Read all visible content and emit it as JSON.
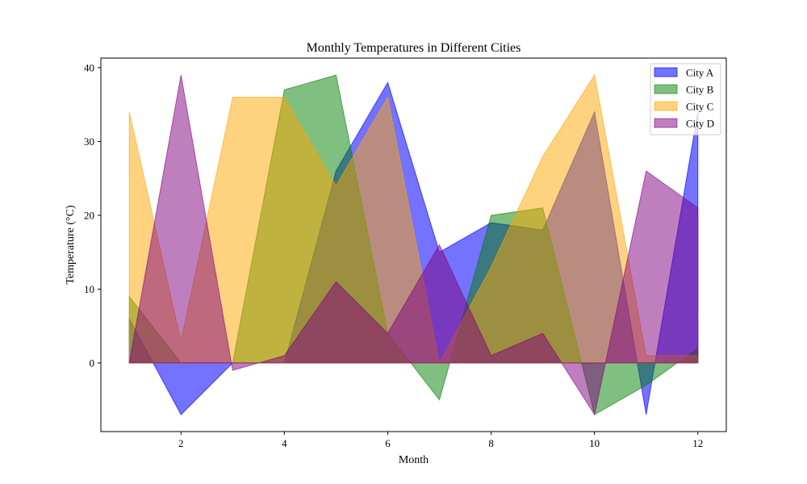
{
  "chart_data": {
    "type": "area",
    "title": "Monthly Temperatures in Different Cities",
    "xlabel": "Month",
    "ylabel": "Temperature (°C)",
    "x": [
      1,
      2,
      3,
      4,
      5,
      6,
      7,
      8,
      9,
      10,
      11,
      12
    ],
    "xlim": [
      0.45,
      12.55
    ],
    "ylim": [
      -9.3,
      41.3
    ],
    "xticks": [
      2,
      4,
      6,
      8,
      10,
      12
    ],
    "yticks": [
      0,
      10,
      20,
      30,
      40
    ],
    "grid": false,
    "legend_position": "top-right",
    "series": [
      {
        "name": "City A",
        "color": "#0000ff",
        "opacity": 0.55,
        "values": [
          6,
          -7,
          0,
          0,
          26,
          38,
          15,
          19,
          18,
          34,
          -7,
          34
        ]
      },
      {
        "name": "City B",
        "color": "#008000",
        "opacity": 0.5,
        "values": [
          9,
          0,
          0,
          37,
          39,
          4,
          -5,
          20,
          21,
          -7,
          -3,
          2
        ]
      },
      {
        "name": "City C",
        "color": "#ffa500",
        "opacity": 0.5,
        "values": [
          34,
          3,
          36,
          36,
          24,
          36,
          0,
          13,
          28,
          39,
          1,
          1
        ]
      },
      {
        "name": "City D",
        "color": "#800080",
        "opacity": 0.5,
        "values": [
          0,
          39,
          -1,
          1,
          11,
          4,
          16,
          1,
          4,
          -7,
          26,
          21
        ]
      }
    ]
  }
}
